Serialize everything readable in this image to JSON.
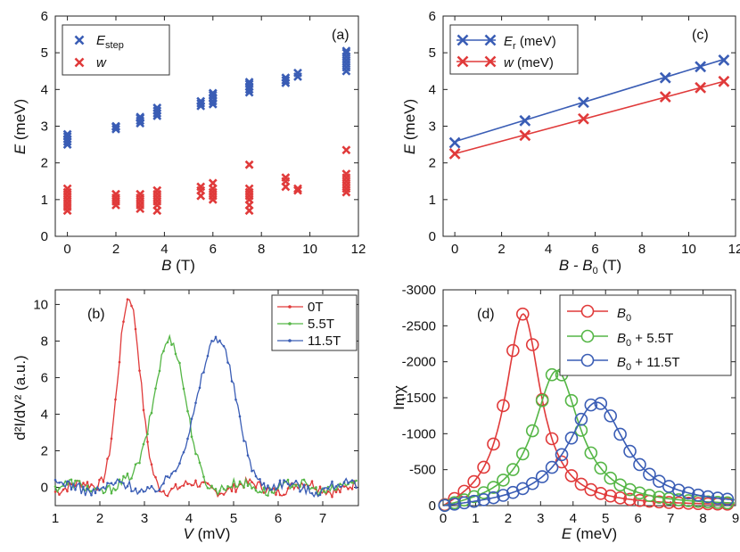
{
  "colors": {
    "blue": "#3a5db5",
    "red": "#e03a3a",
    "green": "#55b646",
    "axis": "#222222"
  },
  "chart_data": [
    {
      "id": "a",
      "type": "scatter",
      "panel_label": "(a)",
      "xlabel_main": "B",
      "xlabel_unit": " (T)",
      "ylabel_main": "E",
      "ylabel_unit": " (meV)",
      "xlim": [
        -0.5,
        12
      ],
      "ylim": [
        0,
        6
      ],
      "xticks": [
        0,
        2,
        4,
        6,
        8,
        10,
        12
      ],
      "yticks": [
        0,
        1,
        2,
        3,
        4,
        5,
        6
      ],
      "legend": [
        {
          "main": "E",
          "sub": "step",
          "color": "blue"
        },
        {
          "main": "w",
          "sub": "",
          "color": "red"
        }
      ],
      "series": [
        {
          "name": "E_step",
          "color": "blue",
          "groups": [
            {
              "x": 0,
              "y": [
                2.5,
                2.58,
                2.65,
                2.72,
                2.78
              ]
            },
            {
              "x": 2,
              "y": [
                2.92,
                2.98,
                3.0
              ]
            },
            {
              "x": 3,
              "y": [
                3.08,
                3.15,
                3.22,
                3.25
              ]
            },
            {
              "x": 3.7,
              "y": [
                3.28,
                3.35,
                3.42,
                3.5
              ]
            },
            {
              "x": 5.5,
              "y": [
                3.55,
                3.62,
                3.68
              ]
            },
            {
              "x": 6,
              "y": [
                3.6,
                3.68,
                3.78,
                3.85,
                3.9
              ]
            },
            {
              "x": 7.5,
              "y": [
                3.92,
                4.0,
                4.08,
                4.15,
                4.2
              ]
            },
            {
              "x": 9,
              "y": [
                4.18,
                4.25,
                4.32
              ]
            },
            {
              "x": 9.5,
              "y": [
                4.35,
                4.45
              ]
            },
            {
              "x": 11.5,
              "y": [
                4.5,
                4.6,
                4.7,
                4.8,
                4.9,
                5.0,
                5.05
              ]
            }
          ]
        },
        {
          "name": "w",
          "color": "red",
          "groups": [
            {
              "x": 0,
              "y": [
                0.7,
                0.8,
                0.9,
                1.0,
                1.1,
                1.2,
                1.3
              ]
            },
            {
              "x": 2,
              "y": [
                0.85,
                0.95,
                1.05,
                1.15
              ]
            },
            {
              "x": 3,
              "y": [
                0.75,
                0.85,
                0.95,
                1.05,
                1.15
              ]
            },
            {
              "x": 3.7,
              "y": [
                0.7,
                0.85,
                0.95,
                1.05,
                1.15,
                1.25
              ]
            },
            {
              "x": 5.5,
              "y": [
                1.1,
                1.25,
                1.35
              ]
            },
            {
              "x": 6,
              "y": [
                1.0,
                1.1,
                1.2,
                1.3,
                1.45
              ]
            },
            {
              "x": 7.5,
              "y": [
                0.7,
                0.85,
                1.0,
                1.1,
                1.2,
                1.3,
                1.95
              ]
            },
            {
              "x": 9,
              "y": [
                1.35,
                1.5,
                1.6
              ]
            },
            {
              "x": 9.5,
              "y": [
                1.25,
                1.3
              ]
            },
            {
              "x": 11.5,
              "y": [
                1.2,
                1.3,
                1.4,
                1.5,
                1.6,
                1.7,
                2.35
              ]
            }
          ]
        }
      ]
    },
    {
      "id": "b",
      "type": "line",
      "panel_label": "(b)",
      "xlabel_main": "V",
      "xlabel_unit": " (mV)",
      "ylabel_text": "d²I/dV² (a.u.)",
      "xlim": [
        1,
        7.8
      ],
      "ylim": [
        -1,
        10.8
      ],
      "xticks": [
        1,
        2,
        3,
        4,
        5,
        6,
        7
      ],
      "yticks": [
        0,
        2,
        4,
        6,
        8,
        10
      ],
      "legend_position": "top-right",
      "series": [
        {
          "name": "0T",
          "color": "red",
          "center": 2.65,
          "peak": 10.2,
          "width": 0.35
        },
        {
          "name": "5.5T",
          "color": "green",
          "center": 3.55,
          "peak": 8.1,
          "width": 0.5
        },
        {
          "name": "11.5T",
          "color": "blue",
          "center": 4.6,
          "peak": 8.2,
          "width": 0.6
        }
      ]
    },
    {
      "id": "c",
      "type": "line",
      "panel_label": "(c)",
      "xlabel_text": "B - B",
      "xlabel_sub": "0",
      "xlabel_unit": " (T)",
      "ylabel_main": "E",
      "ylabel_unit": " (meV)",
      "xlim": [
        -0.5,
        12
      ],
      "ylim": [
        0,
        6
      ],
      "xticks": [
        0,
        2,
        4,
        6,
        8,
        10,
        12
      ],
      "yticks": [
        0,
        1,
        2,
        3,
        4,
        5,
        6
      ],
      "series": [
        {
          "name_main": "E",
          "name_sub": "r",
          "name_unit": " (meV)",
          "color": "blue",
          "x": [
            0,
            3,
            5.5,
            9,
            10.5,
            11.5
          ],
          "y": [
            2.55,
            3.15,
            3.65,
            4.32,
            4.62,
            4.8
          ],
          "fit": [
            [
              0,
              2.58
            ],
            [
              11.5,
              4.82
            ]
          ]
        },
        {
          "name_main": "w",
          "name_sub": "",
          "name_unit": " (meV)",
          "color": "red",
          "x": [
            0,
            3,
            5.5,
            9,
            10.5,
            11.5
          ],
          "y": [
            2.25,
            2.75,
            3.2,
            3.8,
            4.05,
            4.22
          ],
          "fit": [
            [
              0,
              2.25
            ],
            [
              11.5,
              4.22
            ]
          ]
        }
      ]
    },
    {
      "id": "d",
      "type": "line",
      "panel_label": "(d)",
      "xlabel_main": "E",
      "xlabel_unit": " (meV)",
      "ylabel_text": "Imχ",
      "xlim": [
        0,
        9
      ],
      "ylim": [
        0,
        -3000
      ],
      "xticks": [
        0,
        1,
        2,
        3,
        4,
        5,
        6,
        7,
        8,
        9
      ],
      "yticks": [
        0,
        -500,
        -1000,
        -1500,
        -2000,
        -2500,
        -3000
      ],
      "ytick_labels": [
        "0",
        "-500",
        "-1000",
        "-1500",
        "-2000",
        "-2500",
        "-3000"
      ],
      "series": [
        {
          "name_main": "B",
          "name_sub": "0",
          "name_rest": "",
          "color": "red",
          "peak_pos": 2.55,
          "peak_val": -2620,
          "gamma": 0.85,
          "base_right": -250
        },
        {
          "name_main": "B",
          "name_sub": "0",
          "name_rest": " + 5.5T",
          "color": "green",
          "peak_pos": 3.6,
          "peak_val": -1850,
          "gamma": 1.1,
          "base_right": -330
        },
        {
          "name_main": "B",
          "name_sub": "0",
          "name_rest": " + 11.5T",
          "color": "blue",
          "peak_pos": 4.85,
          "peak_val": -1420,
          "gamma": 1.4,
          "base_right": -420
        }
      ]
    }
  ]
}
